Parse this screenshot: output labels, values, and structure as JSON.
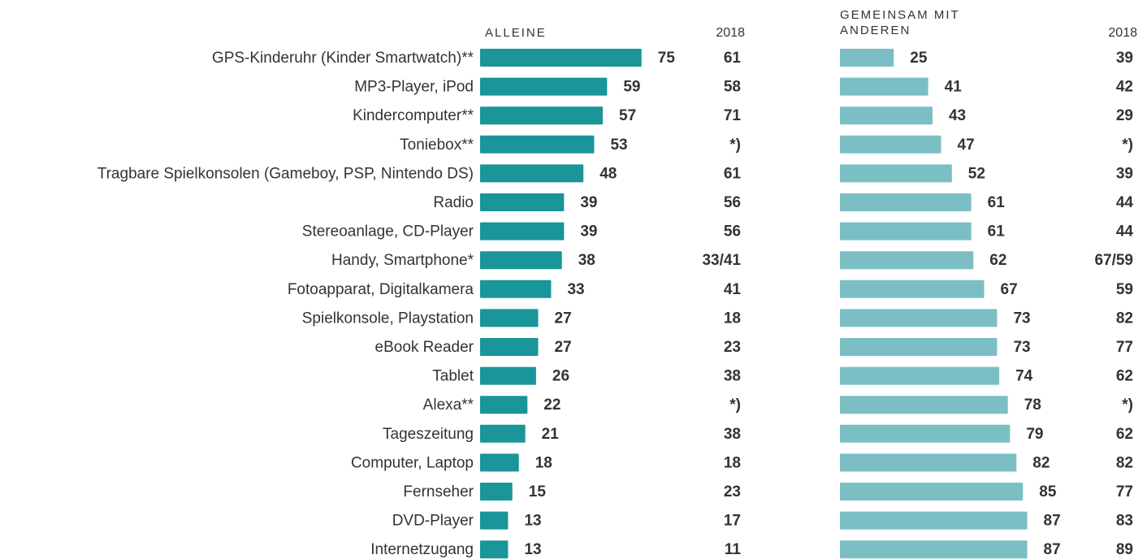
{
  "chart_data": {
    "type": "bar",
    "categories": [
      "GPS-Kinderuhr (Kinder Smartwatch)**",
      "MP3-Player, iPod",
      "Kindercomputer**",
      "Toniebox**",
      "Tragbare Spielkonsolen (Gameboy, PSP, Nintendo DS)",
      "Radio",
      "Stereoanlage, CD-Player",
      "Handy, Smartphone*",
      "Fotoapparat, Digitalkamera",
      "Spielkonsole, Playstation",
      "eBook Reader",
      "Tablet",
      "Alexa**",
      "Tageszeitung",
      "Computer, Laptop",
      "Fernseher",
      "DVD-Player",
      "Internetzugang"
    ],
    "series": [
      {
        "name": "ALLEINE",
        "color": "#1a9599",
        "values": [
          75,
          59,
          57,
          53,
          48,
          39,
          39,
          38,
          33,
          27,
          27,
          26,
          22,
          21,
          18,
          15,
          13,
          13
        ],
        "comparison_label": "2018",
        "comparison": [
          "61",
          "58",
          "71",
          "*)",
          "61",
          "56",
          "56",
          "33/41",
          "41",
          "18",
          "23",
          "38",
          "*)",
          "38",
          "18",
          "23",
          "17",
          "11"
        ]
      },
      {
        "name": "GEMEINSAM MIT ANDEREN",
        "color": "#7bbfc4",
        "values": [
          25,
          41,
          43,
          47,
          52,
          61,
          61,
          62,
          67,
          73,
          73,
          74,
          78,
          79,
          82,
          85,
          87,
          87
        ],
        "comparison_label": "2018",
        "comparison": [
          "39",
          "42",
          "29",
          "*)",
          "39",
          "44",
          "44",
          "67/59",
          "59",
          "82",
          "77",
          "62",
          "*)",
          "62",
          "82",
          "77",
          "83",
          "89"
        ]
      }
    ]
  }
}
